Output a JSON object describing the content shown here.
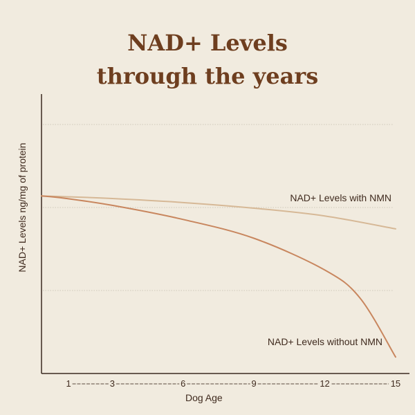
{
  "chart_data": {
    "type": "line",
    "title_line1": "NAD+ Levels",
    "title_line2": "through the years",
    "xlabel": "Dog Age",
    "ylabel": "NAD+ Levels ng/mg of protein",
    "x_ticks": [
      1,
      3,
      6,
      9,
      12,
      15
    ],
    "x_tick_labels": [
      "1",
      "3",
      "6",
      "9",
      "12",
      "15"
    ],
    "xlim": [
      0,
      15
    ],
    "grid": "horizontal dotted",
    "series": [
      {
        "name": "NAD+ Levels with NMN",
        "color": "#d6b896",
        "x": [
          0,
          1,
          3,
          6,
          9,
          12,
          15
        ],
        "y": [
          0.755,
          0.752,
          0.744,
          0.727,
          0.703,
          0.67,
          0.615
        ]
      },
      {
        "name": "NAD+ Levels without NMN",
        "color": "#c8865e",
        "x": [
          0,
          1,
          3,
          6,
          9,
          12,
          13.5,
          15
        ],
        "y": [
          0.755,
          0.745,
          0.715,
          0.655,
          0.575,
          0.44,
          0.32,
          0.07
        ]
      }
    ]
  }
}
